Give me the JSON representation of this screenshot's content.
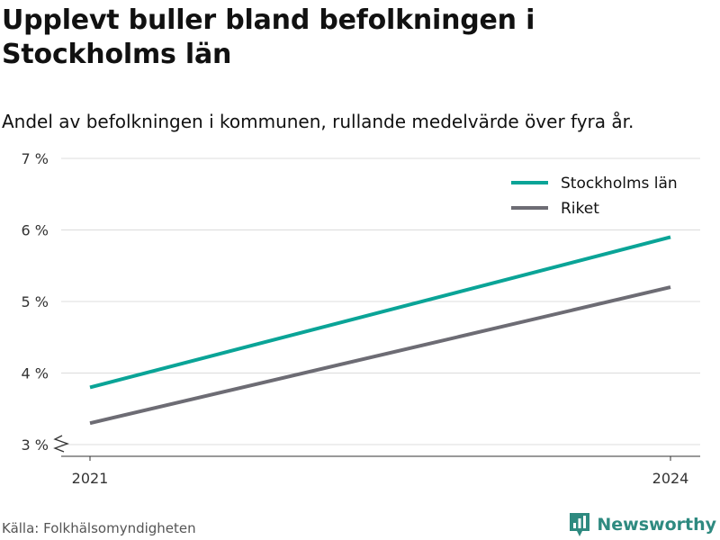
{
  "chart_data": {
    "type": "line",
    "title": "Upplevt buller bland befolkningen i Stockholms län",
    "subtitle": "Andel av befolkningen i kommunen, rullande medelvärde över fyra år.",
    "x": [
      2021,
      2024
    ],
    "x_tick_labels": [
      "2021",
      "2024"
    ],
    "y_ticks": [
      3,
      4,
      5,
      6,
      7
    ],
    "y_tick_labels": [
      "3 %",
      "4 %",
      "5 %",
      "6 %",
      "7 %"
    ],
    "ylim": [
      3,
      7
    ],
    "y_axis_break": true,
    "grid": true,
    "legend_position": "top-right",
    "series": [
      {
        "name": "Stockholms län",
        "color": "#0aa497",
        "values": [
          3.8,
          5.9
        ]
      },
      {
        "name": "Riket",
        "color": "#6d6c74",
        "values": [
          3.3,
          5.2
        ]
      }
    ]
  },
  "footer": {
    "source": "Källa: Folkhälsomyndigheten",
    "brand": "Newsworthy",
    "brand_icon": "bar-chart-speech-bubble-icon",
    "brand_color": "#2e8a80"
  }
}
